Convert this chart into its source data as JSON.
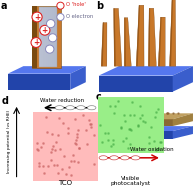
{
  "bg_color": "#ffffff",
  "panel_a": {
    "label": "a",
    "base_color": "#3a5ecc",
    "base_top_color": "#5577ee",
    "base_side_color": "#2244aa",
    "rod_outer_color": "#c8782a",
    "rod_inner_color": "#b0b8cc",
    "rod_left_color": "#7a4a10",
    "hole_face": "#ffffff",
    "hole_edge": "#dd2222",
    "electron_face": "#ffffff",
    "electron_edge": "#8888bb",
    "legend_hole_text": "'hole'",
    "legend_hole_color": "#dd2222",
    "legend_electron_text": "electron",
    "legend_electron_color": "#666688"
  },
  "panel_b": {
    "label": "b",
    "base_color": "#3a5ecc",
    "base_top_color": "#5577ee",
    "nanowire_color": "#c8782a",
    "nanowire_edge": "#7a4010",
    "nanowire_dark": "#9a5818"
  },
  "panel_c": {
    "label": "c",
    "base_color": "#3a5ecc",
    "base_top_color": "#5577ee",
    "film_top_color": "#b09055",
    "film_side_color": "#8a6833"
  },
  "panel_d": {
    "label": "d",
    "ylabel": "Increasing potential (vs RHE)",
    "tco_color": "#ffbbbb",
    "pc_color_top": "#99ee88",
    "tco_dot_color": "#cc6666",
    "pc_dot_color": "#44aa44",
    "tco_label": "TCO",
    "pc_label": "Visible\nphotocatalyst",
    "water_reduction": "Water reduction",
    "water_oxidation": "Water oxidation"
  }
}
